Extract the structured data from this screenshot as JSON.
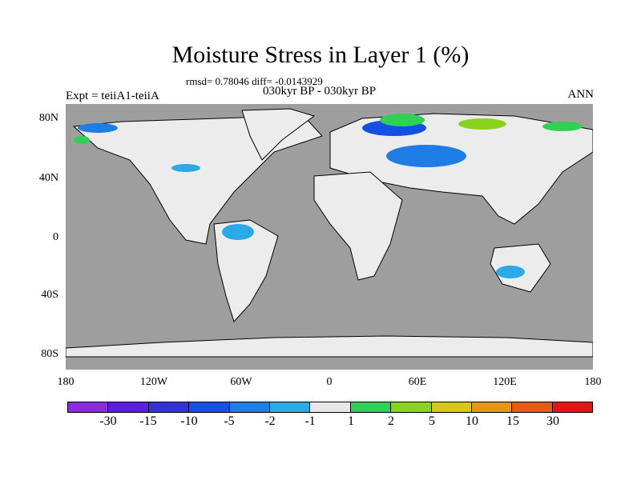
{
  "title": "Moisture Stress in Layer 1 (%)",
  "stats": "rmsd= 0.78046 diff= -0.0143929",
  "period": "030kyr BP - 030kyr BP",
  "experiment": "Expt = teiiA1-teiiA",
  "season": "ANN",
  "x_ticks": [
    "180",
    "120W",
    "60W",
    "0",
    "60E",
    "120E",
    "180"
  ],
  "y_ticks": [
    "80N",
    "40N",
    "0",
    "40S",
    "80S"
  ],
  "legend": {
    "labels": [
      "-30",
      "-15",
      "-10",
      "-5",
      "-2",
      "-1",
      "1",
      "2",
      "5",
      "10",
      "15",
      "30"
    ],
    "colors": [
      "#8a2be2",
      "#5a1ee6",
      "#3232d8",
      "#1450e6",
      "#1e7ee6",
      "#2aaae6",
      "#e8e8e8",
      "#2ed154",
      "#8ad21e",
      "#d8c814",
      "#e69614",
      "#e65a14",
      "#e61414"
    ]
  },
  "colors": {
    "ocean": "#9e9e9e",
    "land": "#ececec"
  }
}
